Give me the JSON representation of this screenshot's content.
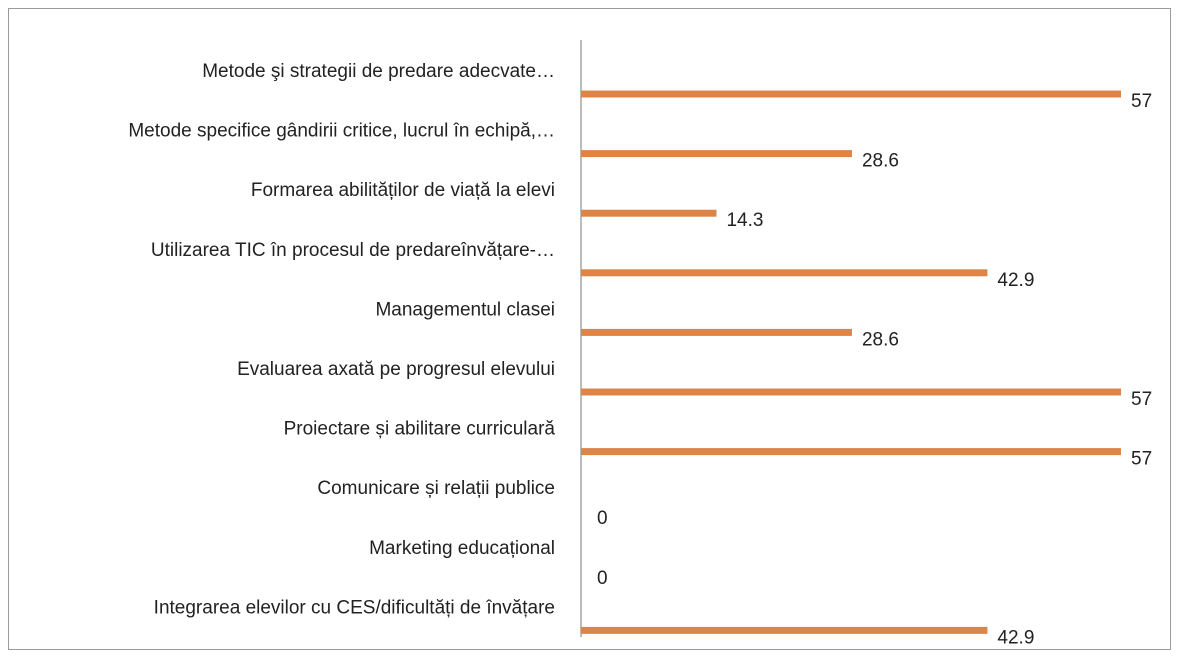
{
  "chart_data": {
    "type": "bar",
    "orientation": "horizontal",
    "color": "#dd8446",
    "categories": [
      "Metode şi strategii de predare adecvate…",
      "Metode specifice gândirii critice, lucrul în echipă,…",
      "Formarea abilităților de viață la elevi",
      "Utilizarea TIC în procesul de predareînvățare-…",
      "Managementul clasei",
      "Evaluarea axată pe progresul elevului",
      "Proiectare și abilitare curriculară",
      "Comunicare și relații publice",
      "Marketing educațional",
      "Integrarea elevilor cu CES/dificultăți de învățare"
    ],
    "values": [
      57,
      28.6,
      14.3,
      42.9,
      28.6,
      57,
      57,
      0,
      0,
      42.9
    ]
  }
}
